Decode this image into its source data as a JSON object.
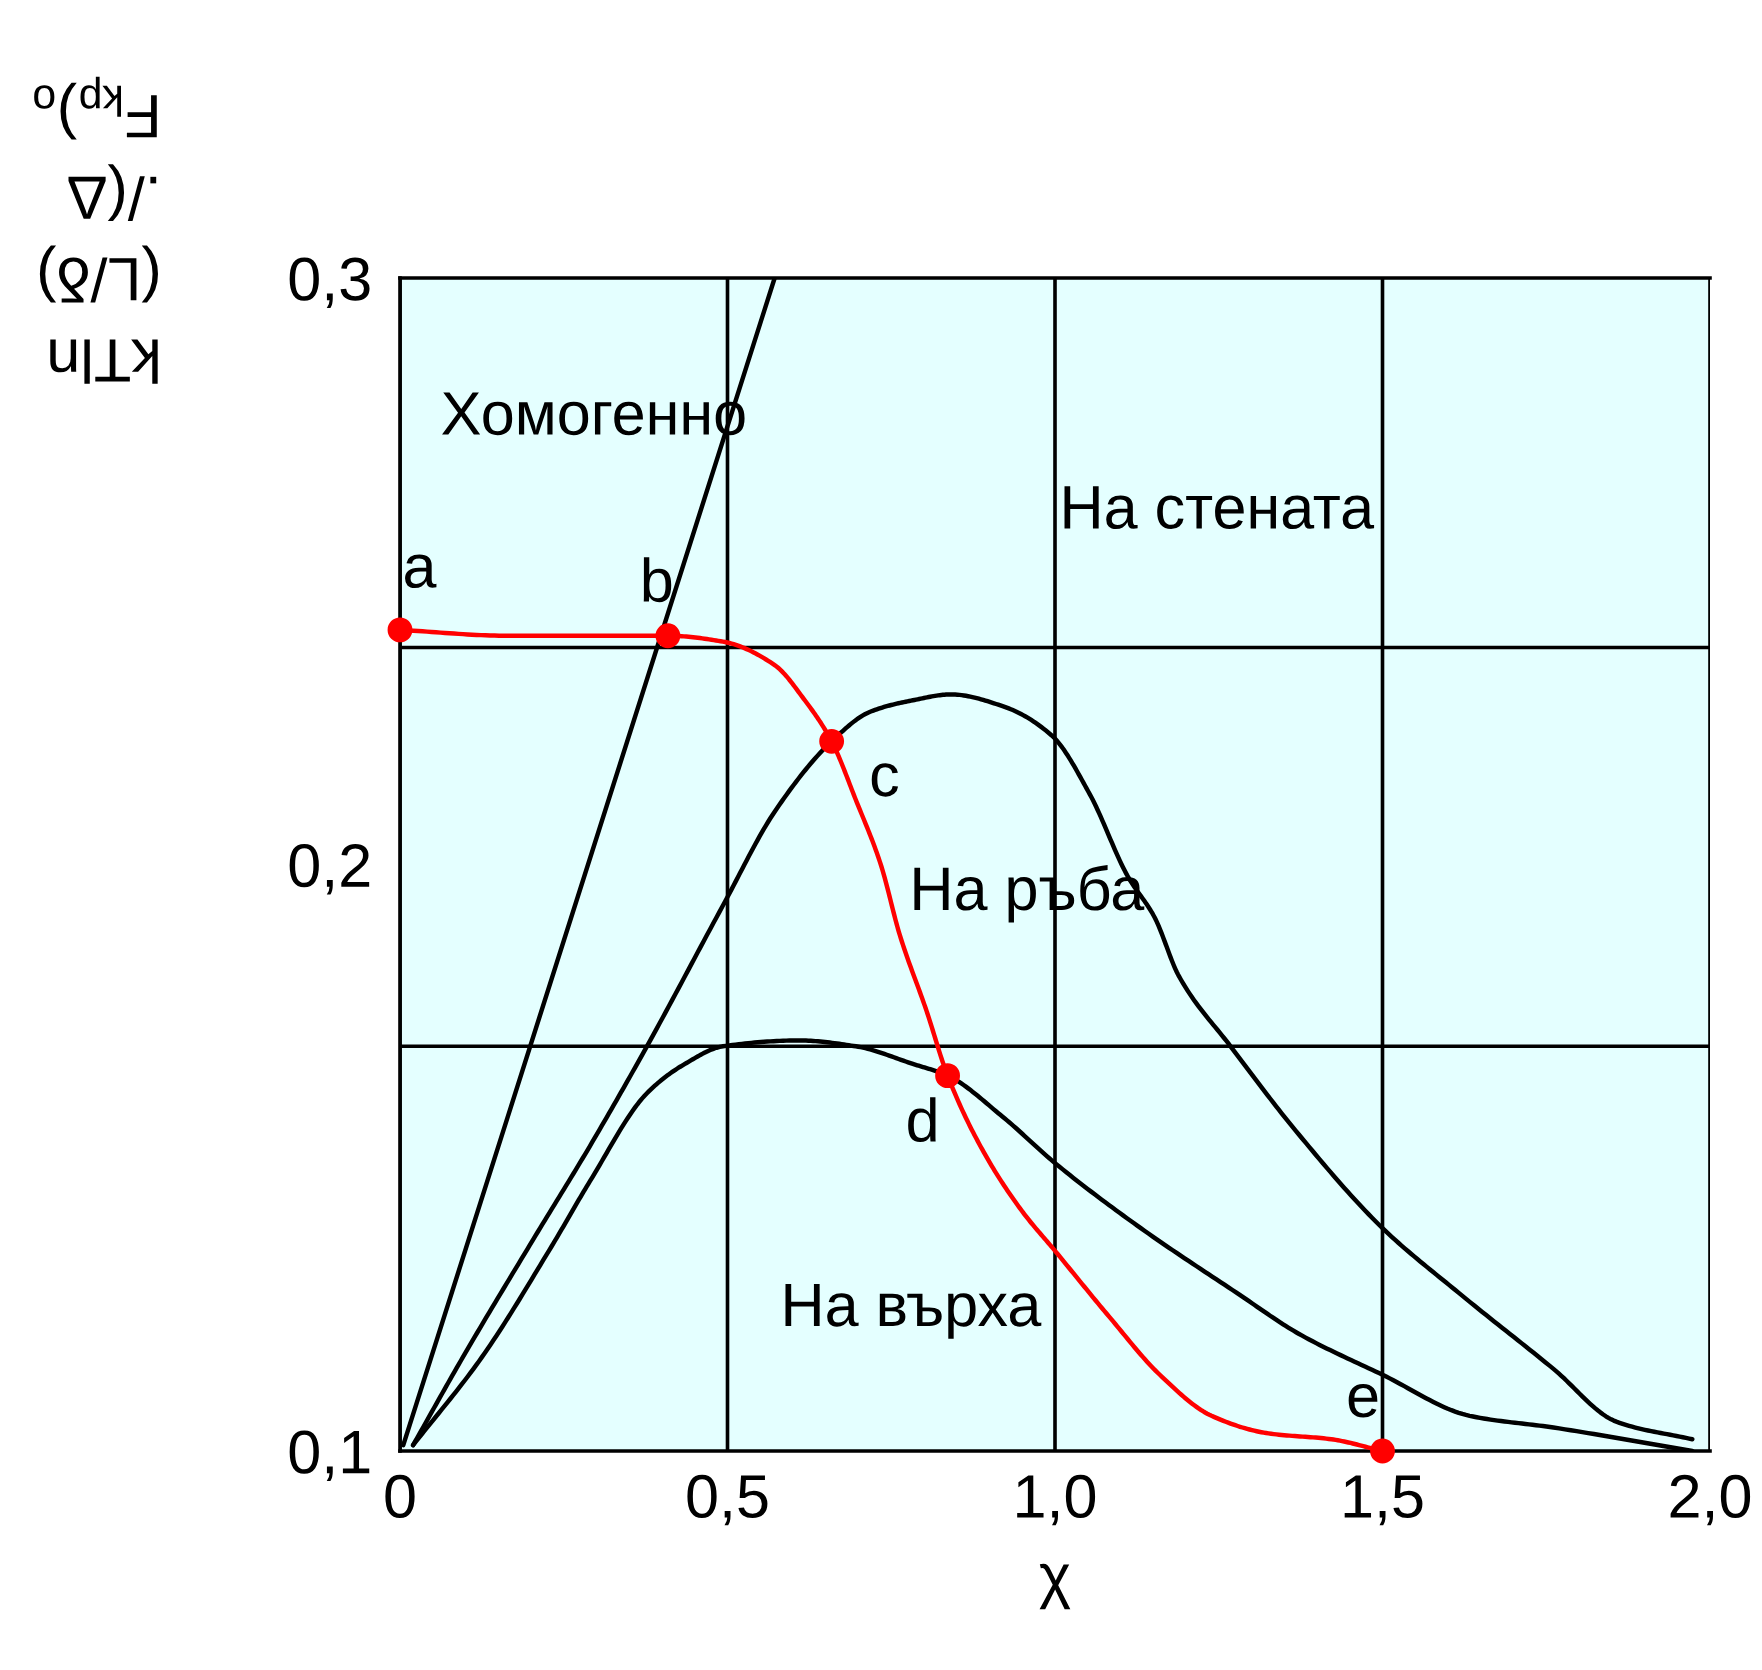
{
  "chart_data": {
    "type": "line",
    "xlabel": "χ",
    "ylabel": "kTln\n(L/δ)\n./(Δ\nF$_{kp}$)$_{o}$",
    "xlim": [
      0,
      2.0
    ],
    "xticks": [
      {
        "value": 0,
        "label": "0"
      },
      {
        "value": 0.5,
        "label": "0,5"
      },
      {
        "value": 1.0,
        "label": "1,0"
      },
      {
        "value": 1.5,
        "label": "1,5"
      },
      {
        "value": 2.0,
        "label": "2,0"
      }
    ],
    "ylim": [
      0.1,
      0.3
    ],
    "yticks": [
      {
        "value": 0.1,
        "label": "0,1"
      },
      {
        "value": 0.2,
        "label": "0,2"
      },
      {
        "value": 0.3,
        "label": "0,3"
      }
    ],
    "grid": "x",
    "ref_lines": [
      {
        "axis": "y",
        "value": 0.237,
        "color": "#000000"
      },
      {
        "axis": "y",
        "value": 0.169,
        "color": "#000000"
      }
    ],
    "series": [
      {
        "color": "#000000",
        "x": [
          0.005,
          0.572
        ],
        "values": [
          0.101,
          0.3
        ]
      },
      {
        "color": "#000000",
        "x": [
          0.02,
          0.096,
          0.203,
          0.29,
          0.377,
          0.493,
          0.572,
          0.659,
          0.717,
          0.783,
          0.841,
          0.92,
          0.995,
          1.053,
          1.111,
          1.152,
          1.189,
          1.268,
          1.372,
          1.5,
          1.616,
          1.761,
          1.857,
          1.973
        ],
        "values": [
          0.101,
          0.116,
          0.136,
          0.152,
          0.169,
          0.193,
          0.209,
          0.221,
          0.226,
          0.228,
          0.229,
          0.227,
          0.222,
          0.212,
          0.198,
          0.191,
          0.181,
          0.169,
          0.154,
          0.138,
          0.127,
          0.114,
          0.105,
          0.102
        ]
      },
      {
        "color": "#000000",
        "x": [
          0.02,
          0.125,
          0.232,
          0.29,
          0.377,
          0.435,
          0.493,
          0.609,
          0.696,
          0.783,
          0.836,
          0.92,
          1.001,
          1.131,
          1.277,
          1.372,
          1.5,
          1.633,
          1.761,
          1.973
        ],
        "values": [
          0.101,
          0.116,
          0.135,
          0.146,
          0.161,
          0.166,
          0.169,
          0.17,
          0.169,
          0.166,
          0.164,
          0.157,
          0.149,
          0.138,
          0.127,
          0.12,
          0.113,
          0.106,
          0.104,
          0.1
        ]
      },
      {
        "color": "#ff0000",
        "x": [
          0,
          0.165,
          0.409,
          0.493,
          0.572,
          0.618,
          0.659,
          0.696,
          0.734,
          0.763,
          0.804,
          0.836,
          0.891,
          0.949,
          1.001,
          1.082,
          1.16,
          1.239,
          1.326,
          1.422,
          1.5
        ],
        "values": [
          0.24,
          0.239,
          0.239,
          0.238,
          0.234,
          0.228,
          0.221,
          0.211,
          0.2,
          0.188,
          0.175,
          0.164,
          0.151,
          0.141,
          0.134,
          0.123,
          0.113,
          0.106,
          0.103,
          0.102,
          0.1
        ]
      },
      {
        "type": "scatter",
        "color": "#ff0000",
        "marker": "circle",
        "x": [
          0,
          0.409,
          0.659,
          0.836,
          1.5
        ],
        "values": [
          0.24,
          0.239,
          0.221,
          0.164,
          0.1
        ]
      }
    ],
    "annotations": [
      {
        "text": "a",
        "x": 0,
        "y": 0.24
      },
      {
        "text": "b",
        "x": 0.409,
        "y": 0.239
      },
      {
        "text": "c",
        "x": 0.659,
        "y": 0.221
      },
      {
        "text": "d",
        "x": 0.836,
        "y": 0.164
      },
      {
        "text": "e",
        "x": 1.5,
        "y": 0.1
      },
      "Хомогенно",
      "На стената",
      "На ръба",
      "На върха"
    ]
  }
}
